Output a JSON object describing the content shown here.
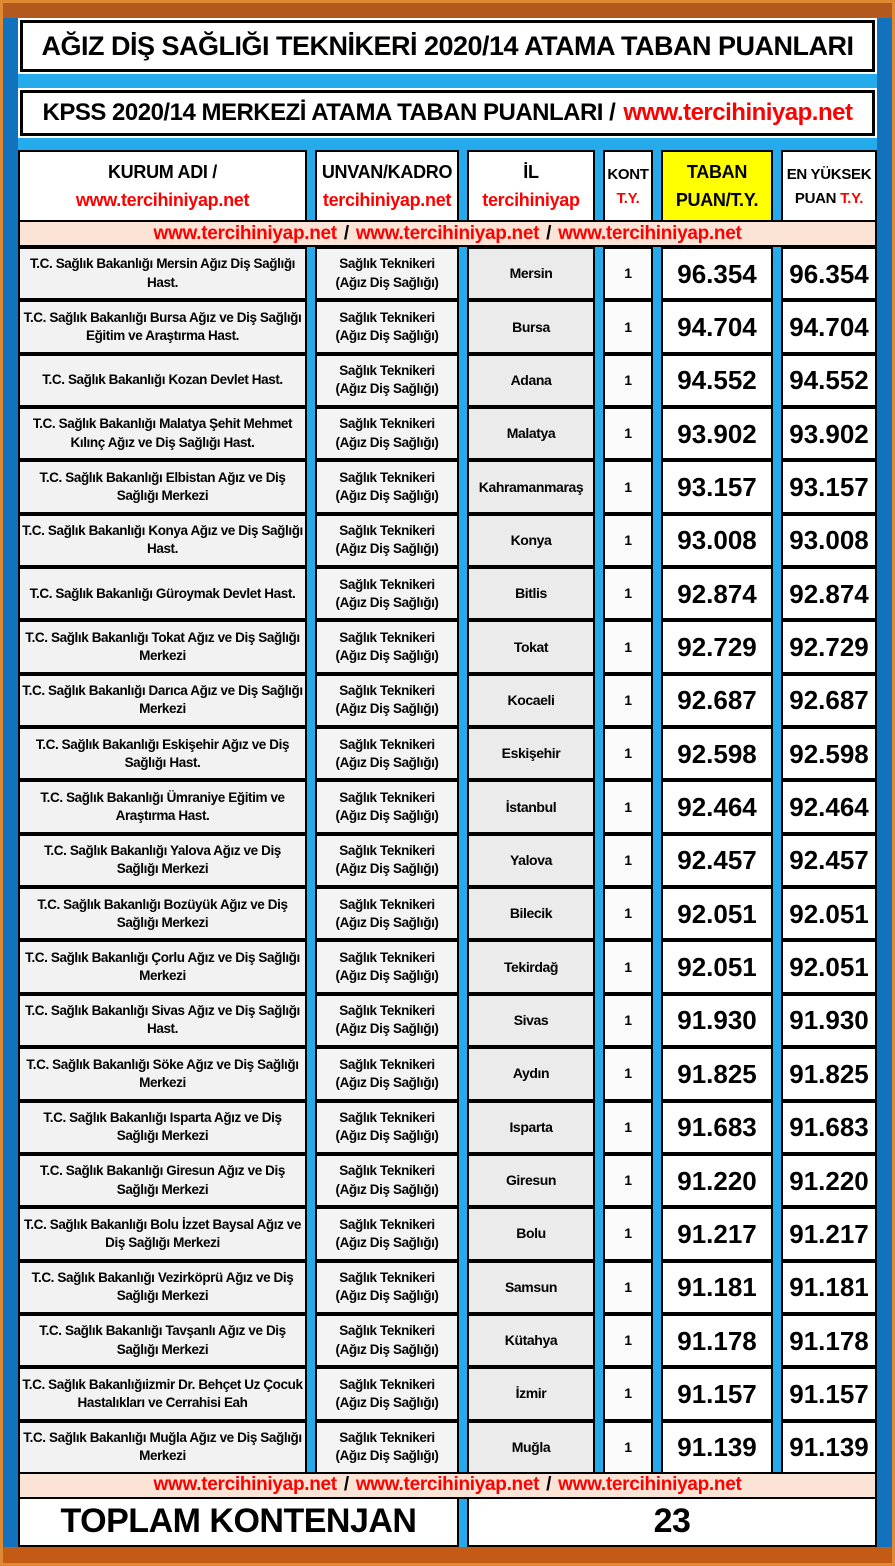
{
  "titles": {
    "main": "AĞIZ DİŞ SAĞLIĞI TEKNİKERİ 2020/14 ATAMA TABAN PUANLARI",
    "sub_black": "KPSS 2020/14 MERKEZİ ATAMA TABAN PUANLARI /",
    "sub_red": "www.tercihiniyap.net"
  },
  "header": {
    "kurum_black": "KURUM ADI /",
    "kurum_red": "www.tercihiniyap.net",
    "unvan_black": "UNVAN/KADRO",
    "unvan_red": "tercihiniyap.net",
    "il_black": "İL",
    "il_red": "tercihiniyap",
    "kont_black": "KONT",
    "kont_red": "T.Y.",
    "taban_line1": "TABAN",
    "taban_line2": "PUAN/T.Y.",
    "yuksek_line1": "EN YÜKSEK",
    "yuksek_line2_black": "PUAN",
    "yuksek_line2_red": "T.Y."
  },
  "url_band": {
    "url": "www.tercihiniyap.net",
    "separator": "/"
  },
  "unvan": {
    "line1": "Sağlık Teknikeri",
    "line2": "(Ağız Diş Sağlığı)"
  },
  "rows": [
    {
      "institution": "T.C. Sağlık Bakanlığı Mersin Ağız Diş Sağlığı Hast.",
      "il": "Mersin",
      "kont": "1",
      "taban": "96.354",
      "yuksek": "96.354"
    },
    {
      "institution": "T.C. Sağlık Bakanlığı Bursa Ağız ve Diş Sağlığı Eğitim ve Araştırma Hast.",
      "il": "Bursa",
      "kont": "1",
      "taban": "94.704",
      "yuksek": "94.704"
    },
    {
      "institution": "T.C. Sağlık Bakanlığı Kozan Devlet Hast.",
      "il": "Adana",
      "kont": "1",
      "taban": "94.552",
      "yuksek": "94.552"
    },
    {
      "institution": "T.C. Sağlık Bakanlığı Malatya Şehit Mehmet Kılınç Ağız ve Diş Sağlığı Hast.",
      "il": "Malatya",
      "kont": "1",
      "taban": "93.902",
      "yuksek": "93.902"
    },
    {
      "institution": "T.C. Sağlık Bakanlığı Elbistan Ağız ve Diş Sağlığı Merkezi",
      "il": "Kahramanmaraş",
      "kont": "1",
      "taban": "93.157",
      "yuksek": "93.157"
    },
    {
      "institution": "T.C. Sağlık Bakanlığı Konya Ağız ve Diş Sağlığı Hast.",
      "il": "Konya",
      "kont": "1",
      "taban": "93.008",
      "yuksek": "93.008"
    },
    {
      "institution": "T.C. Sağlık Bakanlığı Güroymak Devlet Hast.",
      "il": "Bitlis",
      "kont": "1",
      "taban": "92.874",
      "yuksek": "92.874"
    },
    {
      "institution": "T.C. Sağlık Bakanlığı Tokat Ağız ve Diş Sağlığı Merkezi",
      "il": "Tokat",
      "kont": "1",
      "taban": "92.729",
      "yuksek": "92.729"
    },
    {
      "institution": "T.C. Sağlık Bakanlığı Darıca Ağız ve Diş Sağlığı Merkezi",
      "il": "Kocaeli",
      "kont": "1",
      "taban": "92.687",
      "yuksek": "92.687"
    },
    {
      "institution": "T.C. Sağlık Bakanlığı Eskişehir Ağız ve Diş Sağlığı Hast.",
      "il": "Eskişehir",
      "kont": "1",
      "taban": "92.598",
      "yuksek": "92.598"
    },
    {
      "institution": "T.C. Sağlık Bakanlığı Ümraniye Eğitim ve Araştırma Hast.",
      "il": "İstanbul",
      "kont": "1",
      "taban": "92.464",
      "yuksek": "92.464"
    },
    {
      "institution": "T.C. Sağlık Bakanlığı Yalova Ağız ve Diş Sağlığı Merkezi",
      "il": "Yalova",
      "kont": "1",
      "taban": "92.457",
      "yuksek": "92.457"
    },
    {
      "institution": "T.C. Sağlık Bakanlığı Bozüyük Ağız ve Diş Sağlığı Merkezi",
      "il": "Bilecik",
      "kont": "1",
      "taban": "92.051",
      "yuksek": "92.051"
    },
    {
      "institution": "T.C. Sağlık Bakanlığı Çorlu Ağız ve Diş Sağlığı Merkezi",
      "il": "Tekirdağ",
      "kont": "1",
      "taban": "92.051",
      "yuksek": "92.051"
    },
    {
      "institution": "T.C. Sağlık Bakanlığı Sivas Ağız ve Diş Sağlığı Hast.",
      "il": "Sivas",
      "kont": "1",
      "taban": "91.930",
      "yuksek": "91.930"
    },
    {
      "institution": "T.C. Sağlık Bakanlığı Söke Ağız ve Diş Sağlığı Merkezi",
      "il": "Aydın",
      "kont": "1",
      "taban": "91.825",
      "yuksek": "91.825"
    },
    {
      "institution": "T.C. Sağlık Bakanlığı Isparta Ağız ve Diş Sağlığı Merkezi",
      "il": "Isparta",
      "kont": "1",
      "taban": "91.683",
      "yuksek": "91.683"
    },
    {
      "institution": "T.C. Sağlık Bakanlığı Giresun Ağız ve Diş Sağlığı Merkezi",
      "il": "Giresun",
      "kont": "1",
      "taban": "91.220",
      "yuksek": "91.220"
    },
    {
      "institution": "T.C. Sağlık Bakanlığı Bolu İzzet Baysal Ağız ve Diş Sağlığı Merkezi",
      "il": "Bolu",
      "kont": "1",
      "taban": "91.217",
      "yuksek": "91.217"
    },
    {
      "institution": "T.C. Sağlık Bakanlığı Vezirköprü Ağız ve Diş Sağlığı Merkezi",
      "il": "Samsun",
      "kont": "1",
      "taban": "91.181",
      "yuksek": "91.181"
    },
    {
      "institution": "T.C. Sağlık Bakanlığı Tavşanlı Ağız ve Diş Sağlığı Merkezi",
      "il": "Kütahya",
      "kont": "1",
      "taban": "91.178",
      "yuksek": "91.178"
    },
    {
      "institution": "T.C. Sağlık Bakanlığıizmir Dr. Behçet Uz Çocuk Hastalıkları ve Cerrahisi Eah",
      "il": "İzmir",
      "kont": "1",
      "taban": "91.157",
      "yuksek": "91.157"
    },
    {
      "institution": "T.C. Sağlık Bakanlığı Muğla Ağız ve Diş Sağlığı Merkezi",
      "il": "Muğla",
      "kont": "1",
      "taban": "91.139",
      "yuksek": "91.139"
    }
  ],
  "footer": {
    "label": "TOPLAM KONTENJAN",
    "total": "23"
  },
  "colors": {
    "frame-orange": "#DF8A33",
    "bar-top-brown": "#B4591D",
    "bar-bottom-brown": "#C35A16",
    "side-blue": "#1372BD",
    "cyan": "#25AAEC",
    "peach": "#FBE3D6",
    "yellow": "#FFFF00",
    "red": "#FF0000"
  }
}
